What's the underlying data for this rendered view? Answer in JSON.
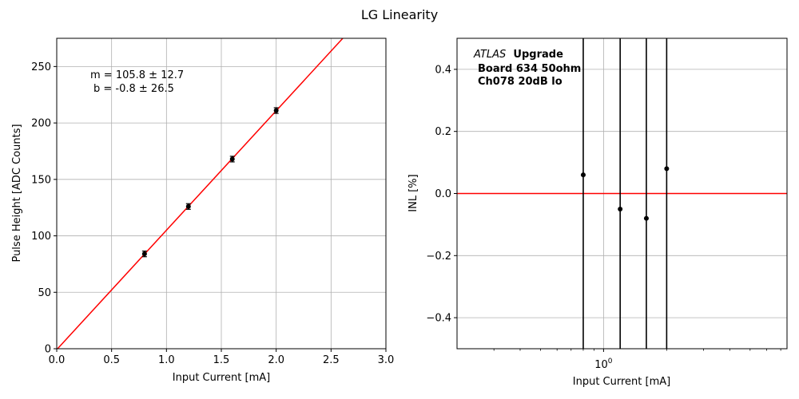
{
  "figure": {
    "title": "LG Linearity"
  },
  "chart_data": [
    {
      "type": "scatter",
      "xlabel": "Input Current [mA]",
      "ylabel": "Pulse Height [ADC Counts]",
      "xlim": [
        0,
        3.0
      ],
      "ylim": [
        0,
        275
      ],
      "x_ticks": [
        "0.0",
        "0.5",
        "1.0",
        "1.5",
        "2.0",
        "2.5",
        "3.0"
      ],
      "y_ticks": [
        "0",
        "50",
        "100",
        "150",
        "200",
        "250"
      ],
      "grid": true,
      "points": [
        {
          "x": 0.8,
          "y": 84,
          "yerr": 2.5
        },
        {
          "x": 1.2,
          "y": 126,
          "yerr": 2.5
        },
        {
          "x": 1.6,
          "y": 168,
          "yerr": 2.5
        },
        {
          "x": 2.0,
          "y": 211,
          "yerr": 2.5
        }
      ],
      "fit": {
        "slope": 105.8,
        "intercept": -0.8,
        "color": "#ff0000"
      },
      "annotation": [
        "m = 105.8 ± 12.7",
        "b = -0.8 ± 26.5"
      ],
      "marker_color": "#000000"
    },
    {
      "type": "scatter",
      "xscale": "log",
      "xlabel": "Input Current [mA]",
      "ylabel": "INL [%]",
      "xlim": [
        0.2,
        7.5
      ],
      "ylim": [
        -0.5,
        0.5
      ],
      "x_ticks": [
        "10^0"
      ],
      "y_ticks": [
        "−0.4",
        "−0.2",
        "0.0",
        "0.2",
        "0.4"
      ],
      "grid": true,
      "points": [
        {
          "x": 0.8,
          "y": 0.06
        },
        {
          "x": 1.2,
          "y": -0.05
        },
        {
          "x": 1.6,
          "y": -0.08
        },
        {
          "x": 2.0,
          "y": 0.08
        }
      ],
      "reference_line": {
        "y": 0.0,
        "color": "#ff0000"
      },
      "annotation": {
        "atlas": "ATLAS",
        "upgrade": "Upgrade",
        "line2": "Board 634 50ohm",
        "line3": "Ch078 20dB lo"
      }
    }
  ]
}
